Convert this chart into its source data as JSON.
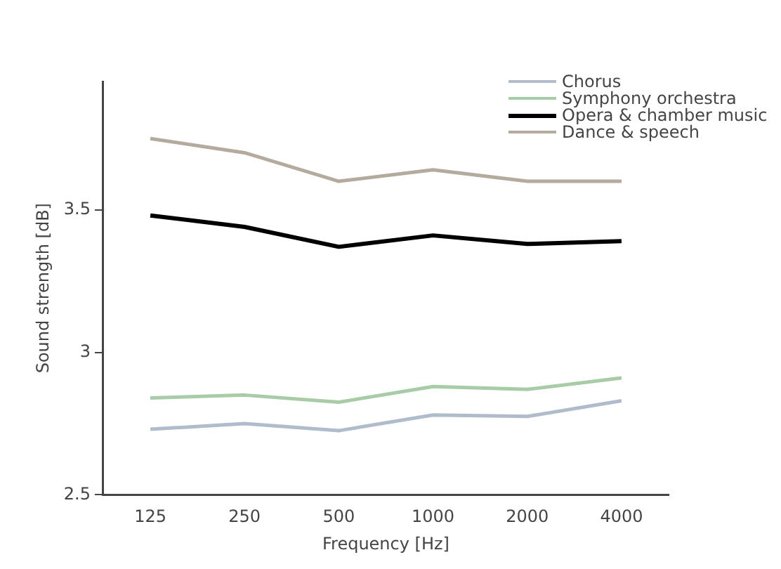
{
  "chart_data": {
    "type": "line",
    "xlabel": "Frequency [Hz]",
    "ylabel": "Sound strength [dB]",
    "categories": [
      "125",
      "250",
      "500",
      "1000",
      "2000",
      "4000"
    ],
    "series": [
      {
        "name": "Chorus",
        "color": "#b0bccc",
        "values": [
          2.73,
          2.75,
          2.725,
          2.78,
          2.775,
          2.83
        ]
      },
      {
        "name": "Symphony orchestra",
        "color": "#a8cca8",
        "values": [
          2.84,
          2.85,
          2.825,
          2.88,
          2.87,
          2.91
        ]
      },
      {
        "name": "Opera & chamber music",
        "color": "#000000",
        "values": [
          3.48,
          3.44,
          3.37,
          3.41,
          3.38,
          3.39
        ]
      },
      {
        "name": "Dance & speech",
        "color": "#b5aa9e",
        "values": [
          3.75,
          3.7,
          3.6,
          3.64,
          3.6,
          3.6
        ]
      }
    ],
    "ylim": [
      2.5,
      3.95
    ],
    "yticks": [
      2.5,
      3,
      3.5
    ],
    "grid": false,
    "legend": "top right",
    "marker": "none",
    "line_style": "solid"
  }
}
